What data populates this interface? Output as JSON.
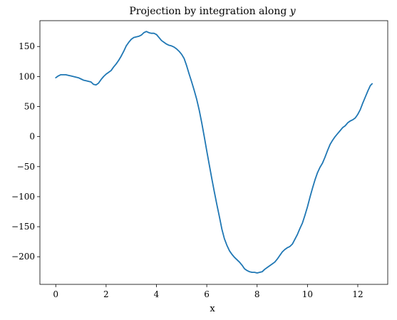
{
  "chart_data": {
    "type": "line",
    "title": "Projection by integration along y",
    "title_prefix": "Projection by integration along",
    "title_variable": "y",
    "xlabel": "x",
    "ylabel": "",
    "xlim": [
      -0.63,
      13.19
    ],
    "ylim": [
      -246,
      193
    ],
    "xticks": [
      0,
      2,
      4,
      6,
      8,
      10,
      12
    ],
    "yticks": [
      -200,
      -150,
      -100,
      -50,
      0,
      50,
      100,
      150
    ],
    "xtick_labels": [
      "0",
      "2",
      "4",
      "6",
      "8",
      "10",
      "12"
    ],
    "ytick_labels": [
      "−200",
      "−150",
      "−100",
      "−50",
      "0",
      "50",
      "100",
      "150"
    ],
    "grid": false,
    "legend": "none",
    "line_color": "#1f77b4",
    "series": [
      {
        "x": [
          0.0,
          0.1,
          0.2,
          0.3,
          0.4,
          0.5,
          0.6,
          0.7,
          0.8,
          0.9,
          1.0,
          1.1,
          1.2,
          1.3,
          1.4,
          1.5,
          1.6,
          1.7,
          1.8,
          1.9,
          2.0,
          2.1,
          2.2,
          2.3,
          2.4,
          2.5,
          2.6,
          2.7,
          2.8,
          2.9,
          3.0,
          3.1,
          3.2,
          3.3,
          3.4,
          3.5,
          3.6,
          3.7,
          3.8,
          3.9,
          4.0,
          4.1,
          4.2,
          4.3,
          4.4,
          4.5,
          4.6,
          4.7,
          4.8,
          4.9,
          5.0,
          5.1,
          5.2,
          5.3,
          5.4,
          5.5,
          5.6,
          5.7,
          5.8,
          5.9,
          6.0,
          6.1,
          6.2,
          6.3,
          6.4,
          6.5,
          6.6,
          6.7,
          6.8,
          6.9,
          7.0,
          7.1,
          7.2,
          7.3,
          7.4,
          7.5,
          7.6,
          7.7,
          7.8,
          7.9,
          8.0,
          8.1,
          8.2,
          8.3,
          8.4,
          8.5,
          8.6,
          8.7,
          8.8,
          8.9,
          9.0,
          9.1,
          9.2,
          9.3,
          9.4,
          9.5,
          9.6,
          9.7,
          9.8,
          9.9,
          10.0,
          10.1,
          10.2,
          10.3,
          10.4,
          10.5,
          10.6,
          10.7,
          10.8,
          10.9,
          11.0,
          11.1,
          11.2,
          11.3,
          11.4,
          11.5,
          11.6,
          11.7,
          11.8,
          11.9,
          12.0,
          12.1,
          12.2,
          12.3,
          12.4,
          12.5,
          12.57
        ],
        "y": [
          98,
          101,
          103,
          103,
          103,
          102,
          101,
          100,
          99,
          98,
          96,
          94,
          93,
          92,
          91,
          87,
          86,
          89,
          95,
          100,
          104,
          107,
          110,
          116,
          121,
          127,
          134,
          142,
          151,
          157,
          162,
          165,
          166,
          167,
          169,
          173,
          175,
          173,
          172,
          172,
          170,
          165,
          160,
          157,
          154,
          152,
          151,
          149,
          146,
          142,
          137,
          130,
          118,
          104,
          91,
          77,
          62,
          44,
          23,
          0,
          -24,
          -47,
          -70,
          -92,
          -113,
          -133,
          -154,
          -170,
          -181,
          -190,
          -196,
          -201,
          -205,
          -209,
          -214,
          -220,
          -223,
          -225,
          -226,
          -226,
          -227,
          -226,
          -225,
          -221,
          -218,
          -215,
          -212,
          -209,
          -204,
          -198,
          -192,
          -188,
          -185,
          -183,
          -179,
          -171,
          -163,
          -153,
          -144,
          -131,
          -117,
          -101,
          -86,
          -72,
          -60,
          -51,
          -44,
          -34,
          -23,
          -13,
          -6,
          0,
          5,
          10,
          15,
          18,
          23,
          26,
          28,
          31,
          37,
          45,
          56,
          66,
          76,
          85,
          88
        ]
      }
    ]
  }
}
